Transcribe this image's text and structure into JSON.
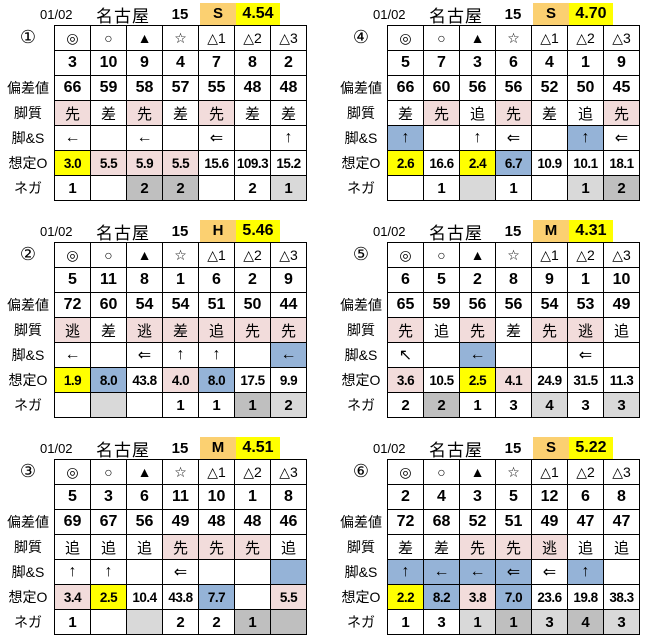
{
  "colors": {
    "pace_badge_orange": "#fbd071",
    "highlight_yellow": "#ffff00",
    "highlight_pink": "#f2dcdb",
    "highlight_blue": "#95b3d7",
    "gray_light": "#d9d9d9",
    "gray_dark": "#bfbfbf",
    "border": "#000000"
  },
  "row_labels": {
    "hensachi": "偏差値",
    "kyakushitsu": "脚質",
    "ashi_s": "脚&S",
    "sotei_o": "想定O",
    "nega": "ネガ"
  },
  "symbols": [
    "◎",
    "○",
    "▲",
    "☆",
    "△1",
    "△2",
    "△3"
  ],
  "tables": [
    {
      "no": "1",
      "label": "①",
      "date": "01/02",
      "venue": "名古屋",
      "race": "15",
      "pace": "S",
      "index": "4.54",
      "rows": {
        "numbers": [
          "3",
          "10",
          "9",
          "4",
          "7",
          "8",
          "2"
        ],
        "hensachi": [
          "66",
          "59",
          "58",
          "57",
          "55",
          "48",
          "48"
        ],
        "kyakushitsu": [
          {
            "t": "先",
            "bg": "pink"
          },
          {
            "t": "差",
            "bg": ""
          },
          {
            "t": "先",
            "bg": "pink"
          },
          {
            "t": "差",
            "bg": ""
          },
          {
            "t": "先",
            "bg": "pink"
          },
          {
            "t": "差",
            "bg": ""
          },
          {
            "t": "差",
            "bg": ""
          }
        ],
        "ashi_s": [
          {
            "t": "←",
            "bg": ""
          },
          {
            "t": "",
            "bg": ""
          },
          {
            "t": "←",
            "bg": ""
          },
          {
            "t": "",
            "bg": ""
          },
          {
            "t": "⇐",
            "bg": ""
          },
          {
            "t": "",
            "bg": ""
          },
          {
            "t": "↑",
            "bg": ""
          }
        ],
        "sotei_o": [
          {
            "t": "3.0",
            "bg": "yellow"
          },
          {
            "t": "5.5",
            "bg": "pink"
          },
          {
            "t": "5.9",
            "bg": "pink"
          },
          {
            "t": "5.5",
            "bg": "pink"
          },
          {
            "t": "15.6",
            "bg": ""
          },
          {
            "t": "109.3",
            "bg": ""
          },
          {
            "t": "15.2",
            "bg": ""
          }
        ],
        "nega": [
          {
            "t": "1",
            "bg": ""
          },
          {
            "t": "",
            "bg": ""
          },
          {
            "t": "2",
            "bg": "gray2"
          },
          {
            "t": "2",
            "bg": "gray2"
          },
          {
            "t": "",
            "bg": ""
          },
          {
            "t": "2",
            "bg": ""
          },
          {
            "t": "1",
            "bg": "gray1"
          }
        ]
      }
    },
    {
      "no": "4",
      "label": "④",
      "date": "01/02",
      "venue": "名古屋",
      "race": "15",
      "pace": "S",
      "index": "4.70",
      "rows": {
        "numbers": [
          "5",
          "7",
          "3",
          "6",
          "4",
          "1",
          "9"
        ],
        "hensachi": [
          "66",
          "60",
          "56",
          "56",
          "52",
          "50",
          "45"
        ],
        "kyakushitsu": [
          {
            "t": "差",
            "bg": ""
          },
          {
            "t": "先",
            "bg": "pink"
          },
          {
            "t": "追",
            "bg": ""
          },
          {
            "t": "先",
            "bg": "pink"
          },
          {
            "t": "差",
            "bg": ""
          },
          {
            "t": "追",
            "bg": ""
          },
          {
            "t": "先",
            "bg": "pink"
          }
        ],
        "ashi_s": [
          {
            "t": "↑",
            "bg": "blue"
          },
          {
            "t": "",
            "bg": ""
          },
          {
            "t": "↑",
            "bg": ""
          },
          {
            "t": "⇐",
            "bg": ""
          },
          {
            "t": "",
            "bg": ""
          },
          {
            "t": "↑",
            "bg": "blue"
          },
          {
            "t": "⇐",
            "bg": ""
          }
        ],
        "sotei_o": [
          {
            "t": "2.6",
            "bg": "yellow"
          },
          {
            "t": "16.6",
            "bg": ""
          },
          {
            "t": "2.4",
            "bg": "yellow"
          },
          {
            "t": "6.7",
            "bg": "blue"
          },
          {
            "t": "10.9",
            "bg": ""
          },
          {
            "t": "10.1",
            "bg": ""
          },
          {
            "t": "18.1",
            "bg": ""
          }
        ],
        "nega": [
          {
            "t": "",
            "bg": ""
          },
          {
            "t": "1",
            "bg": ""
          },
          {
            "t": "",
            "bg": "gray1"
          },
          {
            "t": "1",
            "bg": ""
          },
          {
            "t": "",
            "bg": ""
          },
          {
            "t": "1",
            "bg": "gray1"
          },
          {
            "t": "2",
            "bg": "gray2"
          }
        ]
      }
    },
    {
      "no": "2",
      "label": "②",
      "date": "01/02",
      "venue": "名古屋",
      "race": "15",
      "pace": "H",
      "index": "5.46",
      "rows": {
        "numbers": [
          "5",
          "11",
          "8",
          "1",
          "6",
          "2",
          "9"
        ],
        "hensachi": [
          "72",
          "60",
          "54",
          "54",
          "51",
          "50",
          "44"
        ],
        "kyakushitsu": [
          {
            "t": "逃",
            "bg": "pink"
          },
          {
            "t": "差",
            "bg": ""
          },
          {
            "t": "逃",
            "bg": "pink"
          },
          {
            "t": "差",
            "bg": "pink"
          },
          {
            "t": "追",
            "bg": "pink"
          },
          {
            "t": "先",
            "bg": "pink"
          },
          {
            "t": "先",
            "bg": "pink"
          }
        ],
        "ashi_s": [
          {
            "t": "←",
            "bg": ""
          },
          {
            "t": "",
            "bg": ""
          },
          {
            "t": "⇐",
            "bg": ""
          },
          {
            "t": "↑",
            "bg": ""
          },
          {
            "t": "↑",
            "bg": ""
          },
          {
            "t": "",
            "bg": ""
          },
          {
            "t": "←",
            "bg": "blue"
          }
        ],
        "sotei_o": [
          {
            "t": "1.9",
            "bg": "yellow"
          },
          {
            "t": "8.0",
            "bg": "blue"
          },
          {
            "t": "43.8",
            "bg": ""
          },
          {
            "t": "4.0",
            "bg": "pink"
          },
          {
            "t": "8.0",
            "bg": "blue"
          },
          {
            "t": "17.5",
            "bg": ""
          },
          {
            "t": "9.9",
            "bg": ""
          }
        ],
        "nega": [
          {
            "t": "",
            "bg": ""
          },
          {
            "t": "",
            "bg": "gray1"
          },
          {
            "t": "",
            "bg": ""
          },
          {
            "t": "1",
            "bg": ""
          },
          {
            "t": "1",
            "bg": ""
          },
          {
            "t": "1",
            "bg": "gray2"
          },
          {
            "t": "2",
            "bg": "gray1"
          }
        ]
      }
    },
    {
      "no": "5",
      "label": "⑤",
      "date": "01/02",
      "venue": "名古屋",
      "race": "15",
      "pace": "M",
      "index": "4.31",
      "rows": {
        "numbers": [
          "6",
          "5",
          "2",
          "8",
          "9",
          "1",
          "10"
        ],
        "hensachi": [
          "65",
          "59",
          "56",
          "56",
          "54",
          "53",
          "49"
        ],
        "kyakushitsu": [
          {
            "t": "先",
            "bg": "pink"
          },
          {
            "t": "追",
            "bg": ""
          },
          {
            "t": "先",
            "bg": "pink"
          },
          {
            "t": "差",
            "bg": ""
          },
          {
            "t": "先",
            "bg": "pink"
          },
          {
            "t": "逃",
            "bg": "pink"
          },
          {
            "t": "追",
            "bg": ""
          }
        ],
        "ashi_s": [
          {
            "t": "↖",
            "bg": ""
          },
          {
            "t": "",
            "bg": ""
          },
          {
            "t": "←",
            "bg": "blue"
          },
          {
            "t": "",
            "bg": ""
          },
          {
            "t": "",
            "bg": ""
          },
          {
            "t": "⇐",
            "bg": ""
          },
          {
            "t": "",
            "bg": ""
          }
        ],
        "sotei_o": [
          {
            "t": "3.6",
            "bg": "pink"
          },
          {
            "t": "10.5",
            "bg": ""
          },
          {
            "t": "2.5",
            "bg": "yellow"
          },
          {
            "t": "4.1",
            "bg": "pink"
          },
          {
            "t": "24.9",
            "bg": ""
          },
          {
            "t": "31.5",
            "bg": ""
          },
          {
            "t": "11.3",
            "bg": ""
          }
        ],
        "nega": [
          {
            "t": "2",
            "bg": ""
          },
          {
            "t": "2",
            "bg": "gray2"
          },
          {
            "t": "1",
            "bg": ""
          },
          {
            "t": "3",
            "bg": ""
          },
          {
            "t": "4",
            "bg": "gray1"
          },
          {
            "t": "3",
            "bg": ""
          },
          {
            "t": "3",
            "bg": "gray1"
          }
        ]
      }
    },
    {
      "no": "3",
      "label": "③",
      "date": "01/02",
      "venue": "名古屋",
      "race": "15",
      "pace": "M",
      "index": "4.51",
      "rows": {
        "numbers": [
          "5",
          "3",
          "6",
          "11",
          "10",
          "1",
          "8"
        ],
        "hensachi": [
          "69",
          "67",
          "56",
          "49",
          "48",
          "48",
          "46"
        ],
        "kyakushitsu": [
          {
            "t": "追",
            "bg": ""
          },
          {
            "t": "追",
            "bg": ""
          },
          {
            "t": "追",
            "bg": ""
          },
          {
            "t": "先",
            "bg": "pink"
          },
          {
            "t": "先",
            "bg": "pink"
          },
          {
            "t": "先",
            "bg": "pink"
          },
          {
            "t": "追",
            "bg": ""
          }
        ],
        "ashi_s": [
          {
            "t": "↑",
            "bg": ""
          },
          {
            "t": "↑",
            "bg": ""
          },
          {
            "t": "",
            "bg": ""
          },
          {
            "t": "⇐",
            "bg": ""
          },
          {
            "t": "",
            "bg": ""
          },
          {
            "t": "",
            "bg": ""
          },
          {
            "t": "",
            "bg": "blue"
          }
        ],
        "sotei_o": [
          {
            "t": "3.4",
            "bg": "pink"
          },
          {
            "t": "2.5",
            "bg": "yellow"
          },
          {
            "t": "10.4",
            "bg": ""
          },
          {
            "t": "43.8",
            "bg": ""
          },
          {
            "t": "7.7",
            "bg": "blue"
          },
          {
            "t": "",
            "bg": ""
          },
          {
            "t": "5.5",
            "bg": "pink"
          }
        ],
        "nega": [
          {
            "t": "1",
            "bg": ""
          },
          {
            "t": "",
            "bg": ""
          },
          {
            "t": "",
            "bg": "gray1"
          },
          {
            "t": "2",
            "bg": ""
          },
          {
            "t": "2",
            "bg": ""
          },
          {
            "t": "1",
            "bg": "gray2"
          },
          {
            "t": "",
            "bg": "gray2"
          }
        ]
      }
    },
    {
      "no": "6",
      "label": "⑥",
      "date": "01/02",
      "venue": "名古屋",
      "race": "15",
      "pace": "S",
      "index": "5.22",
      "rows": {
        "numbers": [
          "2",
          "4",
          "3",
          "5",
          "12",
          "6",
          "8"
        ],
        "hensachi": [
          "72",
          "68",
          "52",
          "51",
          "49",
          "47",
          "47"
        ],
        "kyakushitsu": [
          {
            "t": "差",
            "bg": ""
          },
          {
            "t": "差",
            "bg": ""
          },
          {
            "t": "先",
            "bg": "pink"
          },
          {
            "t": "先",
            "bg": "pink"
          },
          {
            "t": "逃",
            "bg": "pink"
          },
          {
            "t": "追",
            "bg": ""
          },
          {
            "t": "追",
            "bg": ""
          }
        ],
        "ashi_s": [
          {
            "t": "↑",
            "bg": "blue"
          },
          {
            "t": "←",
            "bg": "blue"
          },
          {
            "t": "←",
            "bg": "blue"
          },
          {
            "t": "⇐",
            "bg": "blue"
          },
          {
            "t": "⇐",
            "bg": ""
          },
          {
            "t": "↑",
            "bg": "blue"
          },
          {
            "t": "",
            "bg": ""
          }
        ],
        "sotei_o": [
          {
            "t": "2.2",
            "bg": "yellow"
          },
          {
            "t": "8.2",
            "bg": "blue"
          },
          {
            "t": "3.8",
            "bg": "pink"
          },
          {
            "t": "7.0",
            "bg": "blue"
          },
          {
            "t": "23.6",
            "bg": ""
          },
          {
            "t": "19.8",
            "bg": ""
          },
          {
            "t": "38.3",
            "bg": ""
          }
        ],
        "nega": [
          {
            "t": "1",
            "bg": ""
          },
          {
            "t": "3",
            "bg": ""
          },
          {
            "t": "1",
            "bg": "gray1"
          },
          {
            "t": "1",
            "bg": "gray2"
          },
          {
            "t": "3",
            "bg": "gray1"
          },
          {
            "t": "4",
            "bg": "gray2"
          },
          {
            "t": "3",
            "bg": "gray1"
          }
        ]
      }
    }
  ]
}
